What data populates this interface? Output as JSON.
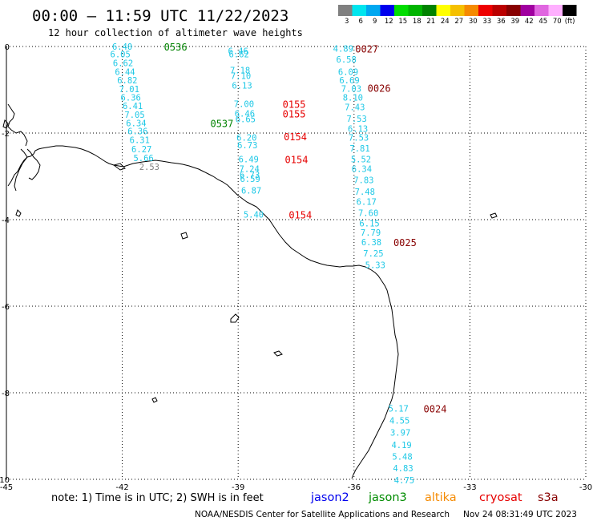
{
  "header": {
    "title": "00:00 – 11:59 UTC 11/22/2023",
    "subtitle": "12 hour collection of altimeter wave heights"
  },
  "legend": {
    "unit": "(ft)",
    "bins": [
      {
        "label": "3",
        "color": "#808080"
      },
      {
        "label": "6",
        "color": "#00e5ee"
      },
      {
        "label": "9",
        "color": "#00a8f0"
      },
      {
        "label": "12",
        "color": "#0000ee"
      },
      {
        "label": "15",
        "color": "#00dd00"
      },
      {
        "label": "18",
        "color": "#00b400"
      },
      {
        "label": "21",
        "color": "#008200"
      },
      {
        "label": "24",
        "color": "#ffff00"
      },
      {
        "label": "27",
        "color": "#f5c000"
      },
      {
        "label": "30",
        "color": "#f58a00"
      },
      {
        "label": "33",
        "color": "#ee0000"
      },
      {
        "label": "36",
        "color": "#bb0000"
      },
      {
        "label": "39",
        "color": "#880000"
      },
      {
        "label": "42",
        "color": "#a000a0"
      },
      {
        "label": "45",
        "color": "#e066e0"
      },
      {
        "label": "70",
        "color": "#ffb0ff"
      },
      {
        "label": "",
        "color": "#000000"
      }
    ]
  },
  "axes": {
    "x_ticks": [
      "-45",
      "-42",
      "-39",
      "-36",
      "-33",
      "-30"
    ],
    "y_ticks": [
      "0",
      "-2",
      "-4",
      "-6",
      "-8",
      "-10"
    ]
  },
  "tracks": [
    {
      "name": "jason3-west",
      "color": "#1ec8e6",
      "values": [
        {
          "lon": -42.0,
          "lat": 0.0,
          "v": "6.40"
        },
        {
          "lon": -42.05,
          "lat": -0.18,
          "v": "6.05"
        },
        {
          "lon": -41.98,
          "lat": -0.38,
          "v": "6.62"
        },
        {
          "lon": -41.93,
          "lat": -0.58,
          "v": "6.44"
        },
        {
          "lon": -41.87,
          "lat": -0.78,
          "v": "6.82"
        },
        {
          "lon": -41.82,
          "lat": -0.98,
          "v": "7.01"
        },
        {
          "lon": -41.78,
          "lat": -1.18,
          "v": "6.36"
        },
        {
          "lon": -41.73,
          "lat": -1.37,
          "v": "6.41"
        },
        {
          "lon": -41.68,
          "lat": -1.57,
          "v": "7.05"
        },
        {
          "lon": -41.64,
          "lat": -1.77,
          "v": "6.34"
        },
        {
          "lon": -41.6,
          "lat": -1.95,
          "v": "6.36"
        },
        {
          "lon": -41.55,
          "lat": -2.16,
          "v": "6.31"
        },
        {
          "lon": -41.5,
          "lat": -2.37,
          "v": "6.27"
        },
        {
          "lon": -41.45,
          "lat": -2.57,
          "v": "5.66"
        }
      ]
    },
    {
      "name": "jason3-west-nearshore",
      "color": "#808080",
      "values": [
        {
          "lon": -41.3,
          "lat": -2.78,
          "v": "2.53"
        }
      ]
    },
    {
      "name": "cryosat-center",
      "color": "#1ec8e6",
      "values": [
        {
          "lon": -39.0,
          "lat": -0.1,
          "v": "6.46"
        },
        {
          "lon": -38.98,
          "lat": -0.18,
          "v": "6.62"
        },
        {
          "lon": -38.95,
          "lat": -0.55,
          "v": "7.18"
        },
        {
          "lon": -38.93,
          "lat": -0.68,
          "v": "7.10"
        },
        {
          "lon": -38.9,
          "lat": -0.9,
          "v": "6.13"
        },
        {
          "lon": -38.85,
          "lat": -1.32,
          "v": "7.00"
        },
        {
          "lon": -38.83,
          "lat": -1.55,
          "v": "6.46"
        },
        {
          "lon": -38.81,
          "lat": -1.68,
          "v": "6.65"
        },
        {
          "lon": -38.78,
          "lat": -2.1,
          "v": "6.20"
        },
        {
          "lon": -38.76,
          "lat": -2.28,
          "v": "6.73"
        },
        {
          "lon": -38.73,
          "lat": -2.6,
          "v": "6.49"
        },
        {
          "lon": -38.71,
          "lat": -2.82,
          "v": "7.24"
        },
        {
          "lon": -38.7,
          "lat": -2.96,
          "v": "6.73"
        },
        {
          "lon": -38.69,
          "lat": -3.06,
          "v": "6.59"
        },
        {
          "lon": -38.66,
          "lat": -3.32,
          "v": "6.87"
        },
        {
          "lon": -38.6,
          "lat": -3.88,
          "v": "5.40"
        }
      ]
    },
    {
      "name": "cryosat-east",
      "color": "#1ec8e6",
      "values": [
        {
          "lon": -36.28,
          "lat": -0.05,
          "v": "4.89"
        },
        {
          "lon": -36.2,
          "lat": -0.3,
          "v": "6.58"
        },
        {
          "lon": -36.15,
          "lat": -0.58,
          "v": "6.09"
        },
        {
          "lon": -36.12,
          "lat": -0.78,
          "v": "6.69"
        },
        {
          "lon": -36.07,
          "lat": -0.97,
          "v": "7.03"
        },
        {
          "lon": -36.03,
          "lat": -1.18,
          "v": "8.10"
        },
        {
          "lon": -35.98,
          "lat": -1.4,
          "v": "7.43"
        },
        {
          "lon": -35.93,
          "lat": -1.67,
          "v": "7.53"
        },
        {
          "lon": -35.9,
          "lat": -1.9,
          "v": "6.13"
        },
        {
          "lon": -35.88,
          "lat": -2.1,
          "v": "7.53"
        },
        {
          "lon": -35.85,
          "lat": -2.35,
          "v": "7.81"
        },
        {
          "lon": -35.82,
          "lat": -2.6,
          "v": "5.52"
        },
        {
          "lon": -35.8,
          "lat": -2.82,
          "v": "6.34"
        },
        {
          "lon": -35.75,
          "lat": -3.08,
          "v": "7.83"
        },
        {
          "lon": -35.72,
          "lat": -3.35,
          "v": "7.48"
        },
        {
          "lon": -35.68,
          "lat": -3.58,
          "v": "6.17"
        },
        {
          "lon": -35.63,
          "lat": -3.84,
          "v": "7.60"
        },
        {
          "lon": -35.6,
          "lat": -4.08,
          "v": "6.15"
        },
        {
          "lon": -35.57,
          "lat": -4.3,
          "v": "7.79"
        },
        {
          "lon": -35.55,
          "lat": -4.52,
          "v": "6.38"
        },
        {
          "lon": -35.5,
          "lat": -4.78,
          "v": "7.25"
        },
        {
          "lon": -35.45,
          "lat": -5.05,
          "v": "5.33"
        }
      ]
    },
    {
      "name": "cryosat-south",
      "color": "#1ec8e6",
      "values": [
        {
          "lon": -34.85,
          "lat": -8.36,
          "v": "5.17"
        },
        {
          "lon": -34.82,
          "lat": -8.64,
          "v": "4.55"
        },
        {
          "lon": -34.8,
          "lat": -8.92,
          "v": "3.97"
        },
        {
          "lon": -34.77,
          "lat": -9.2,
          "v": "4.19"
        },
        {
          "lon": -34.75,
          "lat": -9.47,
          "v": "5.48"
        },
        {
          "lon": -34.73,
          "lat": -9.74,
          "v": "4.83"
        },
        {
          "lon": -34.7,
          "lat": -10.02,
          "v": "4.75"
        }
      ]
    }
  ],
  "passes": [
    {
      "label": "0536",
      "color": "#008200",
      "lon": -40.92,
      "lat": 0.0
    },
    {
      "label": "0537",
      "color": "#008200",
      "lon": -39.72,
      "lat": -1.77
    },
    {
      "label": "0155",
      "color": "#e60000",
      "lon": -37.85,
      "lat": -1.32
    },
    {
      "label": "0155",
      "color": "#e60000",
      "lon": -37.85,
      "lat": -1.55
    },
    {
      "label": "0154",
      "color": "#e60000",
      "lon": -37.82,
      "lat": -2.07
    },
    {
      "label": "0154",
      "color": "#e60000",
      "lon": -37.79,
      "lat": -2.6
    },
    {
      "label": "0154",
      "color": "#e60000",
      "lon": -37.69,
      "lat": -3.88
    },
    {
      "label": "0027",
      "color": "#880000",
      "lon": -35.97,
      "lat": -0.05
    },
    {
      "label": "0026",
      "color": "#880000",
      "lon": -35.65,
      "lat": -0.95
    },
    {
      "label": "0025",
      "color": "#880000",
      "lon": -34.98,
      "lat": -4.52
    },
    {
      "label": "0024",
      "color": "#880000",
      "lon": -34.2,
      "lat": -8.36
    }
  ],
  "note": {
    "text": "note: 1) Time is in UTC; 2) SWH is in feet"
  },
  "satellites": [
    {
      "name": "jason2",
      "color": "#0000ee"
    },
    {
      "name": "jason3",
      "color": "#008c00"
    },
    {
      "name": "altika",
      "color": "#f58a00"
    },
    {
      "name": "cryosat",
      "color": "#e60000"
    },
    {
      "name": "s3a",
      "color": "#880000"
    }
  ],
  "footer": {
    "credit": "NOAA/NESDIS Center for Satellite Applications and Research",
    "timestamp": "Nov 24 08:31:49 UTC 2023"
  }
}
